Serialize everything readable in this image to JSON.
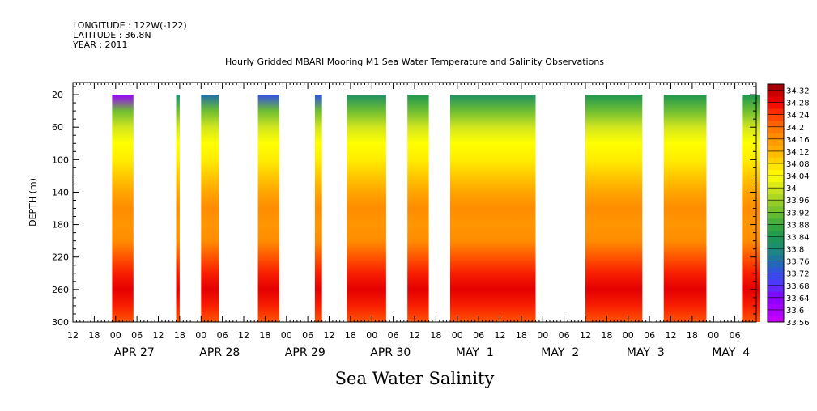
{
  "header": {
    "longitude": "LONGITUDE : 122W(-122)",
    "latitude": "LATITUDE : 36.8N",
    "year": "YEAR : 2011"
  },
  "chart_data": {
    "type": "heatmap",
    "title": "Hourly Gridded MBARI Mooring M1 Sea Water Temperature and Salinity Observations",
    "bottom_title": "Sea Water Salinity",
    "ylabel": "DEPTH (m)",
    "y_axis": {
      "range": [
        300,
        0
      ],
      "ticks": [
        20,
        60,
        100,
        140,
        180,
        220,
        260,
        300
      ]
    },
    "x_axis": {
      "start": "2011-04-26 12:00",
      "end": "2011-05-04 12:00",
      "hour_ticks": [
        "12",
        "18",
        "00",
        "06",
        "12",
        "18",
        "00",
        "06",
        "12",
        "18",
        "00",
        "06",
        "12",
        "18",
        "00",
        "06",
        "12",
        "18",
        "00",
        "06",
        "12",
        "18",
        "00",
        "06",
        "12",
        "18",
        "00",
        "06",
        "12",
        "18",
        "00",
        "06"
      ],
      "date_labels": [
        "APR 27",
        "APR 28",
        "APR 29",
        "APR 30",
        "MAY  1",
        "MAY  2",
        "MAY  3",
        "MAY  4"
      ]
    },
    "colorbar": {
      "min": 33.56,
      "max": 34.34,
      "labels": [
        "34.32",
        "34.28",
        "34.24",
        "34.2",
        "34.16",
        "34.12",
        "34.08",
        "34.04",
        "34",
        "33.96",
        "33.92",
        "33.88",
        "33.84",
        "33.8",
        "33.76",
        "33.72",
        "33.68",
        "33.64",
        "33.6",
        "33.56"
      ]
    },
    "data_segments": [
      {
        "start": "2011-04-26 23:00",
        "end": "2011-04-27 05:00",
        "surface": 33.62
      },
      {
        "start": "2011-04-27 17:00",
        "end": "2011-04-27 18:00",
        "surface": 33.8
      },
      {
        "start": "2011-04-28 00:00",
        "end": "2011-04-28 05:00",
        "surface": 33.76
      },
      {
        "start": "2011-04-28 16:00",
        "end": "2011-04-28 22:00",
        "surface": 33.72
      },
      {
        "start": "2011-04-29 08:00",
        "end": "2011-04-29 10:00",
        "surface": 33.72
      },
      {
        "start": "2011-04-29 17:00",
        "end": "2011-04-30 04:00",
        "surface": 33.82
      },
      {
        "start": "2011-04-30 10:00",
        "end": "2011-04-30 16:00",
        "surface": 33.84
      },
      {
        "start": "2011-04-30 22:00",
        "end": "2011-05-01 22:00",
        "surface": 33.82
      },
      {
        "start": "2011-05-02 12:00",
        "end": "2011-05-03 04:00",
        "surface": 33.84
      },
      {
        "start": "2011-05-03 10:00",
        "end": "2011-05-03 22:00",
        "surface": 33.84
      },
      {
        "start": "2011-05-04 08:00",
        "end": "2011-05-04 13:00",
        "surface": 33.84
      }
    ],
    "depth_profile": {
      "depths": [
        20,
        40,
        60,
        80,
        100,
        120,
        140,
        160,
        180,
        200,
        220,
        240,
        260,
        280,
        300
      ],
      "salinity": [
        33.84,
        33.92,
        34.0,
        34.04,
        34.06,
        34.1,
        34.14,
        34.17,
        34.16,
        34.17,
        34.22,
        34.26,
        34.29,
        34.26,
        34.22
      ]
    }
  }
}
